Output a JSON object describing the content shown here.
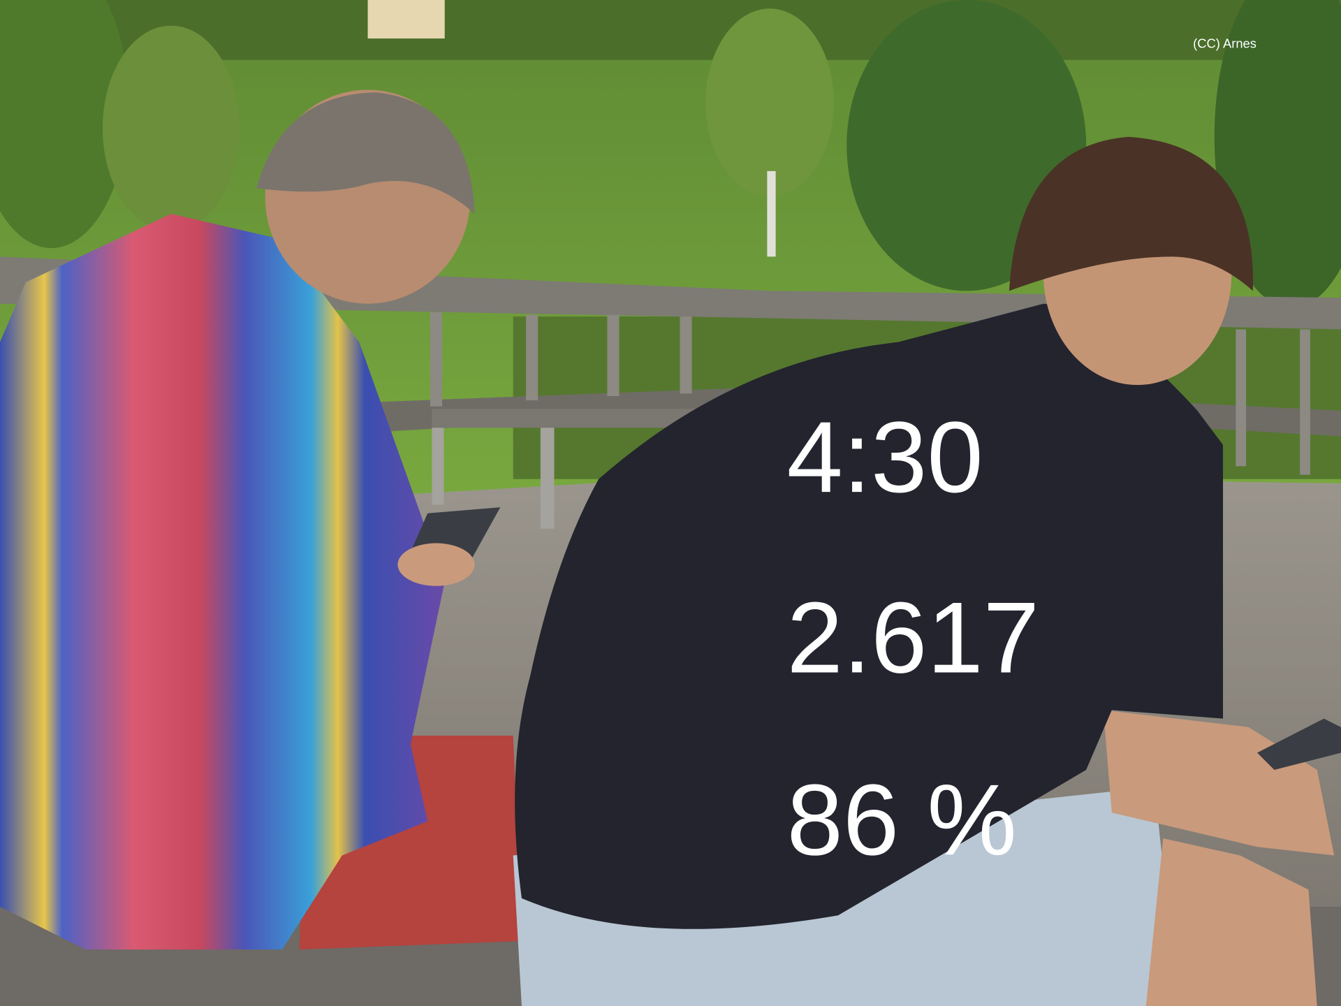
{
  "credit": "(CC) Arnes",
  "stats": [
    "4:30",
    "2.617",
    "86 %"
  ]
}
